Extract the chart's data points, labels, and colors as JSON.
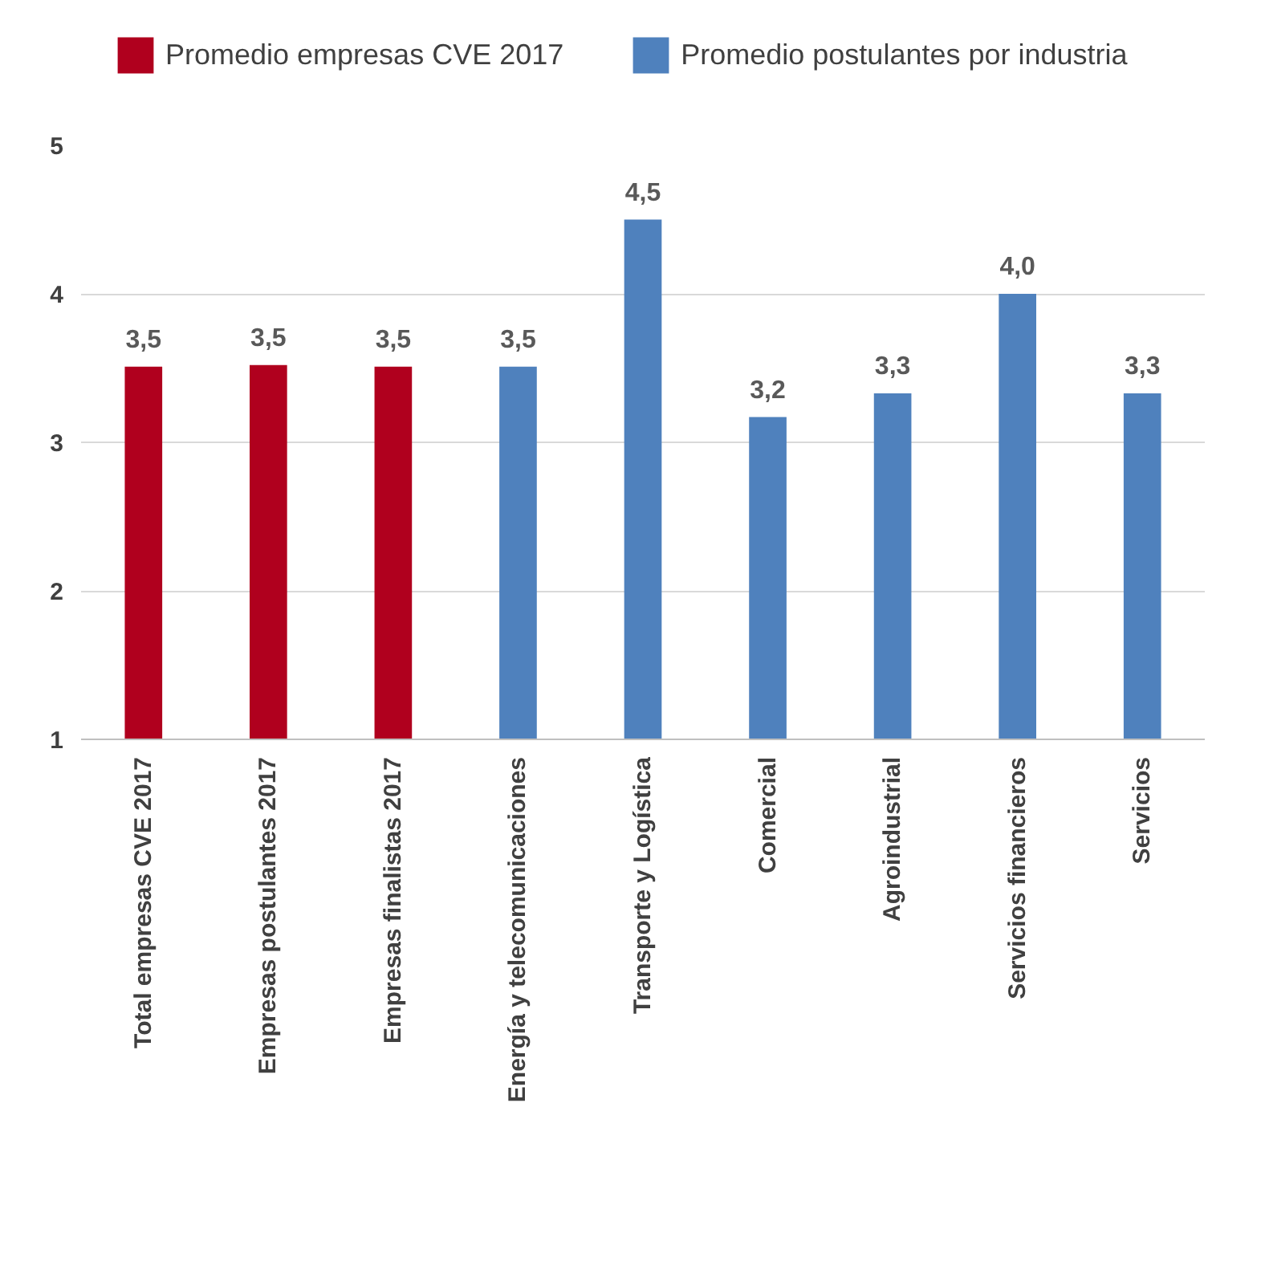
{
  "chart_data": {
    "type": "bar",
    "categories": [
      "Total empresas CVE 2017",
      "Empresas postulantes 2017",
      "Empresas finalistas 2017",
      "Energía y telecomunicaciones",
      "Transporte y Logística",
      "Comercial",
      "Agroindustrial",
      "Servicios financieros",
      "Servicios"
    ],
    "series": [
      {
        "name": "Promedio empresas CVE 2017",
        "color": "#b0001e",
        "values": [
          3.51,
          3.52,
          3.51,
          null,
          null,
          null,
          null,
          null,
          null
        ],
        "value_labels": [
          "3,5",
          "3,5",
          "3,5",
          null,
          null,
          null,
          null,
          null,
          null
        ]
      },
      {
        "name": "Promedio postulantes por industria",
        "color": "#4f81bd",
        "values": [
          null,
          null,
          null,
          3.51,
          4.5,
          3.17,
          3.33,
          4.0,
          3.33
        ],
        "value_labels": [
          null,
          null,
          null,
          "3,5",
          "4,5",
          "3,2",
          "3,3",
          "4,0",
          "3,3"
        ]
      }
    ],
    "ylim": [
      1,
      5
    ],
    "yticks": [
      1,
      2,
      3,
      4,
      5
    ],
    "grid": "y",
    "legend": "top left"
  }
}
